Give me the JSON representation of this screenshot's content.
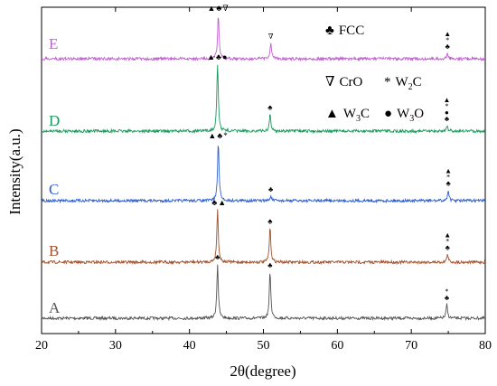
{
  "chart_data": {
    "type": "line",
    "xlabel": "2θ(degree)",
    "ylabel": "Intensity(a.u.)",
    "xlim": [
      20,
      80
    ],
    "xticks": [
      "20",
      "30",
      "40",
      "50",
      "60",
      "70",
      "80"
    ],
    "grid": false,
    "legend": {
      "placement": "top-right",
      "entries": [
        {
          "symbol": "♣",
          "label": "FCC"
        },
        {
          "symbol": "∇",
          "label": "CrO"
        },
        {
          "symbol": "*",
          "label": "W",
          "sub": "2",
          "suffix": "C"
        },
        {
          "symbol": "▲",
          "label": "W",
          "sub": "3",
          "suffix": "C"
        },
        {
          "symbol": "●",
          "label": "W",
          "sub": "3",
          "suffix": "O"
        }
      ]
    },
    "series": [
      {
        "name": "A",
        "color": "#555555",
        "peaks": [
          {
            "x": 43.8,
            "h": 1.0
          },
          {
            "x": 50.9,
            "h": 0.85
          },
          {
            "x": 74.8,
            "h": 0.25
          }
        ],
        "markers": [
          {
            "x": 43.8,
            "symbols": "♣"
          },
          {
            "x": 50.9,
            "symbols": "♣"
          },
          {
            "x": 74.8,
            "symbols": "*♣"
          }
        ]
      },
      {
        "name": "B",
        "color": "#a0522d",
        "peaks": [
          {
            "x": 43.8,
            "h": 1.0
          },
          {
            "x": 50.9,
            "h": 0.65
          },
          {
            "x": 74.9,
            "h": 0.15
          }
        ],
        "markers": [
          {
            "x": 43.8,
            "symbols": "♣▲"
          },
          {
            "x": 50.9,
            "symbols": "♣"
          },
          {
            "x": 74.9,
            "symbols": "▲*♣"
          }
        ]
      },
      {
        "name": "C",
        "color": "#2f5fd0",
        "peaks": [
          {
            "x": 43.9,
            "h": 1.0
          },
          {
            "x": 51.0,
            "h": 0.08
          },
          {
            "x": 75.0,
            "h": 0.18
          }
        ],
        "markers": [
          {
            "x": 43.9,
            "symbols": "▲♣*"
          },
          {
            "x": 51.0,
            "symbols": "♣"
          },
          {
            "x": 75.0,
            "symbols": "▲*♣"
          }
        ]
      },
      {
        "name": "D",
        "color": "#1a9a5c",
        "peaks": [
          {
            "x": 43.8,
            "h": 1.0
          },
          {
            "x": 50.9,
            "h": 0.25
          },
          {
            "x": 74.8,
            "h": 0.08
          }
        ],
        "markers": [
          {
            "x": 43.8,
            "symbols": "▲♣●"
          },
          {
            "x": 50.9,
            "symbols": "♣"
          },
          {
            "x": 74.8,
            "symbols": "▲*●♣"
          }
        ]
      },
      {
        "name": "E",
        "color": "#c060d0",
        "peaks": [
          {
            "x": 43.9,
            "h": 1.0
          },
          {
            "x": 51.0,
            "h": 0.35
          },
          {
            "x": 74.9,
            "h": 0.12
          }
        ],
        "markers": [
          {
            "x": 43.9,
            "symbols": "▲♣∇"
          },
          {
            "x": 51.0,
            "symbols": "∇"
          },
          {
            "x": 74.9,
            "symbols": "▲*♣"
          }
        ]
      }
    ]
  }
}
